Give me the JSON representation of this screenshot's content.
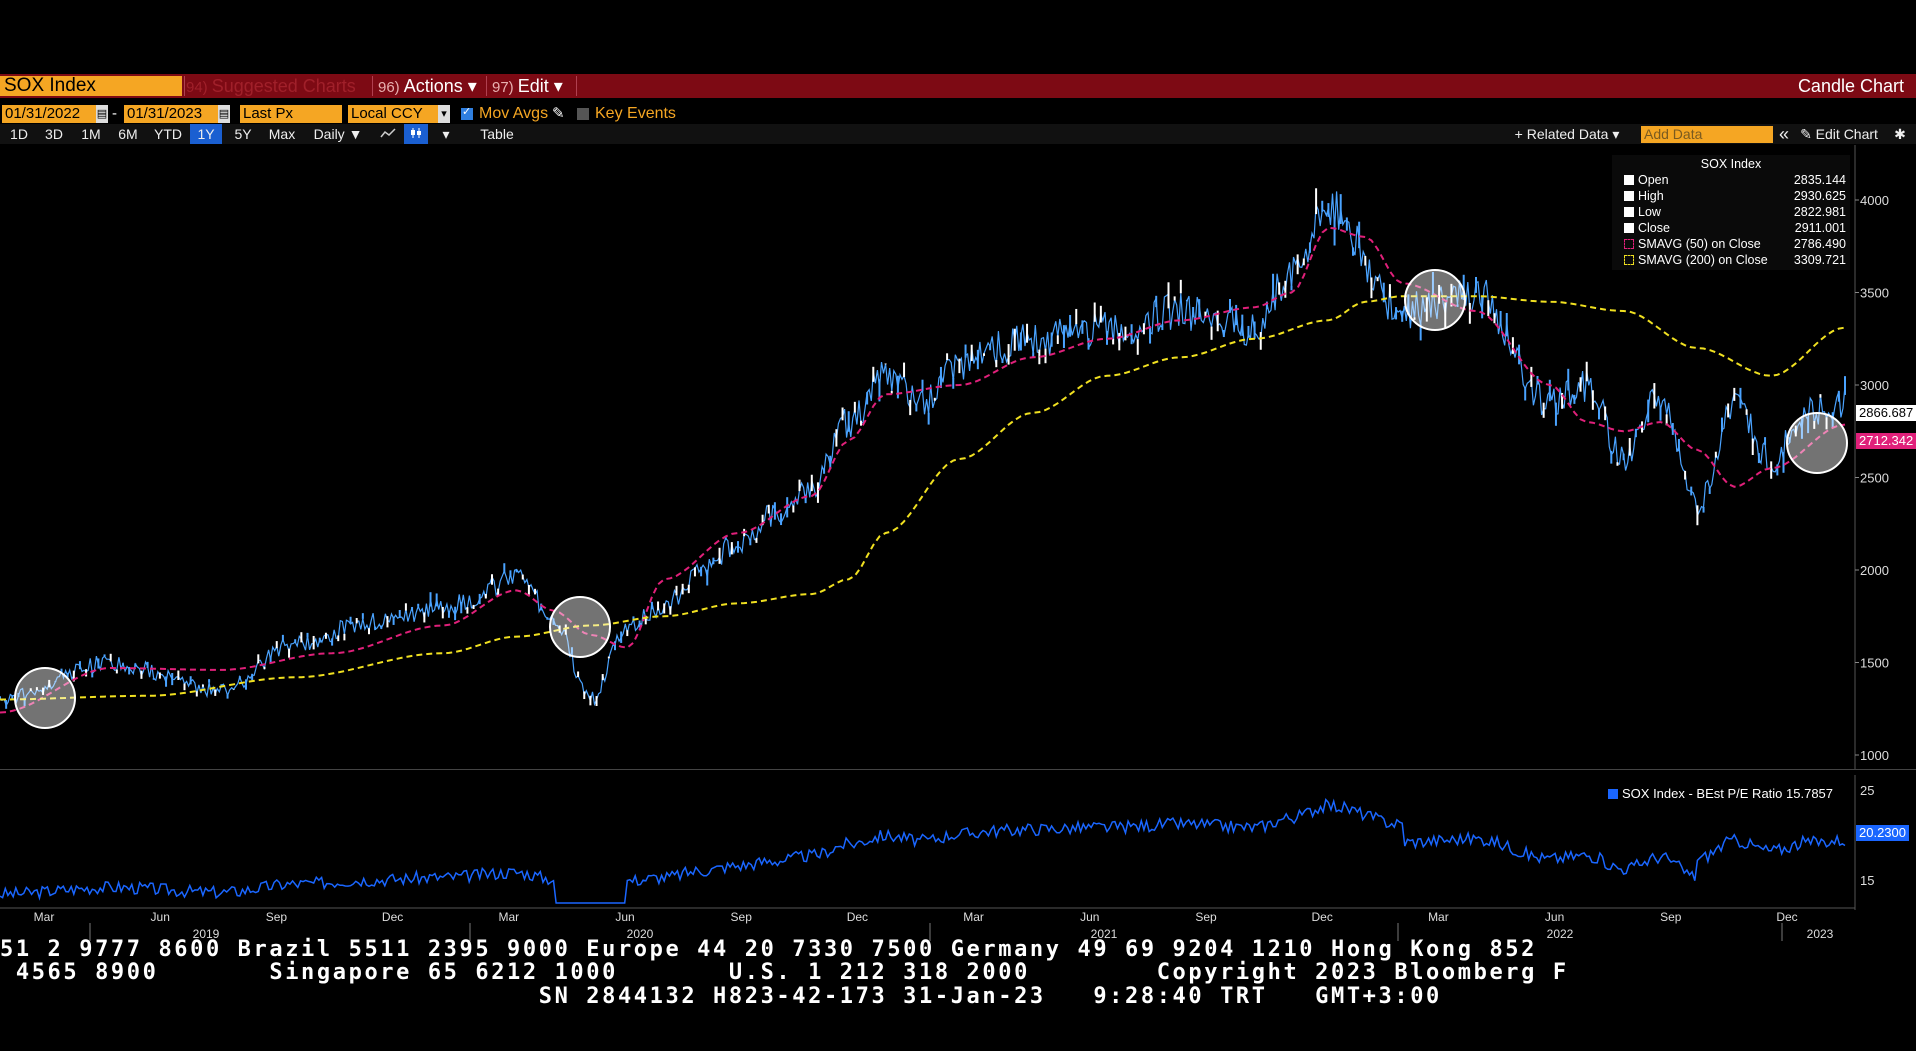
{
  "header": {
    "ticker": "SOX Index",
    "suggested": {
      "num": "94)",
      "label": "Suggested Charts"
    },
    "actions": {
      "num": "96)",
      "label": "Actions ▾"
    },
    "edit": {
      "num": "97)",
      "label": "Edit ▾"
    },
    "chart_type": "Candle Chart"
  },
  "controls": {
    "start_date": "01/31/2022",
    "dash": "-",
    "end_date": "01/31/2023",
    "price_field": "Last Px",
    "currency": "Local CCY",
    "mov_avgs": "Mov Avgs",
    "key_events": "Key Events",
    "periods": [
      "1D",
      "3D",
      "1M",
      "6M",
      "YTD",
      "1Y",
      "5Y",
      "Max"
    ],
    "selected_period": "1Y",
    "frequency": "Daily ▼",
    "table": "Table",
    "related_data": "+ Related Data ▾",
    "add_data_placeholder": "Add Data",
    "collapse": "«",
    "edit_chart": "✎ Edit Chart",
    "gear": "✱"
  },
  "legend": {
    "title": "SOX Index",
    "rows": [
      {
        "label": "Open",
        "value": "2835.144"
      },
      {
        "label": "High",
        "value": "2930.625"
      },
      {
        "label": "Low",
        "value": "2822.981"
      },
      {
        "label": "Close",
        "value": "2911.001"
      },
      {
        "label": "SMAVG (50)  on Close",
        "value": "2786.490"
      },
      {
        "label": "SMAVG (200)  on Close",
        "value": "3309.721"
      }
    ]
  },
  "price_tags": {
    "last": "2866.687",
    "sma": "2712.342"
  },
  "pe": {
    "legend": "SOX Index - BEst P/E Ratio 15.7857",
    "last_tag": "20.2300",
    "y_ticks": [
      "25",
      "15"
    ]
  },
  "colors": {
    "price": "#4aa3ff",
    "sma50": "#e0207a",
    "sma200": "#f0e020",
    "pe": "#1a66ff",
    "bar": "#7d0a14",
    "accent": "#f5a623"
  },
  "chart_data": {
    "type": "line",
    "y_ticks": [
      "4000",
      "3500",
      "3000",
      "2500",
      "2000",
      "1500",
      "1000"
    ],
    "ylim": [
      1000,
      4000
    ],
    "x_ticks": [
      "Mar",
      "Jun",
      "Sep",
      "Dec",
      "Mar",
      "Jun",
      "Sep",
      "Dec",
      "Mar",
      "Jun",
      "Sep",
      "Dec",
      "Mar",
      "Jun",
      "Sep",
      "Dec"
    ],
    "years": [
      "2019",
      "2020",
      "2021",
      "2022",
      "2023"
    ],
    "series": [
      {
        "name": "SOX Index",
        "x": [
          0,
          3,
          6,
          8,
          10,
          12,
          14,
          15,
          16,
          17,
          18,
          19,
          20,
          21,
          22,
          23,
          24,
          25,
          26,
          27,
          28,
          30,
          32,
          34,
          35,
          36,
          38,
          40,
          42,
          43,
          44,
          45,
          46,
          47,
          48,
          49,
          50
        ],
        "y": [
          1300,
          1500,
          1350,
          1600,
          1720,
          1800,
          1950,
          1750,
          1300,
          1700,
          1800,
          2000,
          2150,
          2300,
          2450,
          2800,
          3050,
          2900,
          3100,
          3200,
          3250,
          3300,
          3400,
          3300,
          3600,
          3950,
          3400,
          3500,
          2900,
          3000,
          2600,
          2950,
          2350,
          2900,
          2600,
          2850,
          2911
        ]
      },
      {
        "name": "SMAVG (50)",
        "x": [
          0,
          3,
          6,
          9,
          12,
          14,
          15,
          16,
          17,
          18,
          20,
          22,
          23,
          24,
          26,
          28,
          30,
          32,
          34,
          35,
          36,
          37,
          38,
          40,
          42,
          43,
          44,
          45,
          46,
          47,
          48,
          50
        ],
        "y": [
          1230,
          1470,
          1460,
          1550,
          1700,
          1890,
          1780,
          1650,
          1580,
          1950,
          2200,
          2400,
          2700,
          2950,
          3000,
          3150,
          3250,
          3350,
          3420,
          3500,
          3850,
          3800,
          3550,
          3400,
          3000,
          2800,
          2750,
          2800,
          2650,
          2450,
          2550,
          2786
        ]
      },
      {
        "name": "SMAVG (200)",
        "x": [
          0,
          4,
          8,
          12,
          14,
          16,
          18,
          20,
          22,
          23,
          24,
          26,
          28,
          30,
          32,
          34,
          36,
          37,
          38,
          40,
          42,
          44,
          46,
          48,
          50
        ],
        "y": [
          1300,
          1320,
          1420,
          1550,
          1640,
          1700,
          1750,
          1820,
          1870,
          1950,
          2200,
          2600,
          2850,
          3050,
          3150,
          3250,
          3350,
          3450,
          3480,
          3480,
          3450,
          3400,
          3200,
          3050,
          3310
        ]
      }
    ]
  }
}
